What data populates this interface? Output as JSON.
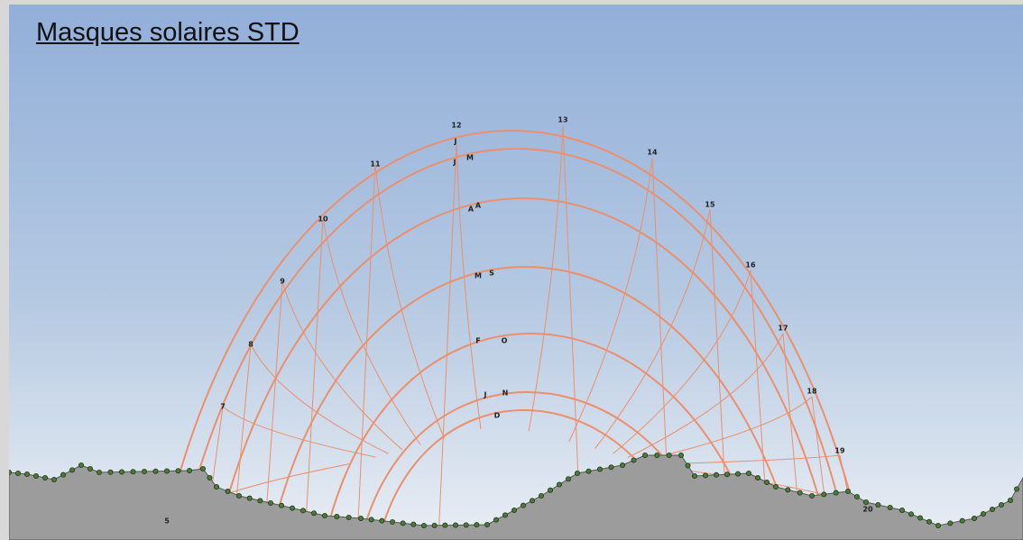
{
  "title": "Masques solaires STD",
  "hours": [
    "5",
    "7",
    "8",
    "9",
    "10",
    "11",
    "12",
    "13",
    "14",
    "15",
    "16",
    "17",
    "18",
    "19",
    "20"
  ],
  "months": [
    "J",
    "J",
    "M",
    "A",
    "A",
    "M",
    "S",
    "F",
    "O",
    "J",
    "N",
    "D"
  ]
}
